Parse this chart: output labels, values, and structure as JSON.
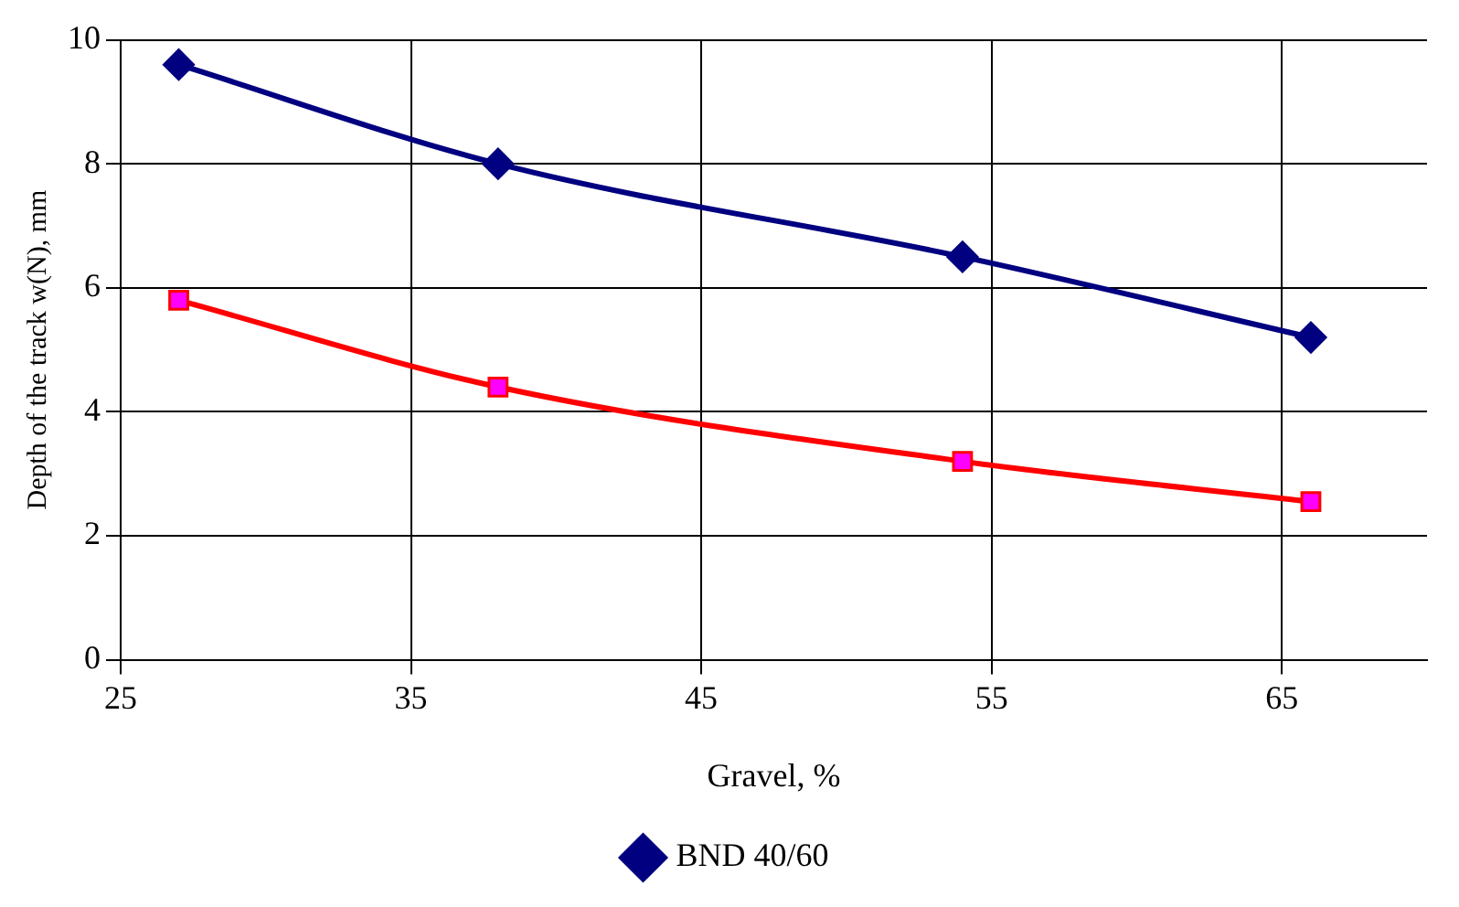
{
  "chart_data": {
    "type": "line",
    "xlabel": "Gravel, %",
    "ylabel": "Depth of the track w(N), mm",
    "xlim": [
      25,
      70
    ],
    "xticks": [
      25,
      35,
      45,
      55,
      65
    ],
    "ylim": [
      0,
      10
    ],
    "yticks": [
      0,
      2,
      4,
      6,
      8,
      10
    ],
    "grid": true,
    "legend": "bottom",
    "line_style": "solid",
    "series": [
      {
        "name": "BND 40/60",
        "color": "#000080",
        "marker": "diamond",
        "x": [
          27,
          38,
          54,
          66
        ],
        "values": [
          9.6,
          8.0,
          6.5,
          5.2
        ]
      },
      {
        "color": "#ff0000",
        "colors": [
          "#ff00ff",
          "#ff00ff",
          "#ff00ff",
          "#ff00ff"
        ],
        "marker": "square",
        "x": [
          27,
          38,
          54,
          66
        ],
        "values": [
          5.8,
          4.4,
          3.2,
          2.55
        ]
      }
    ]
  }
}
